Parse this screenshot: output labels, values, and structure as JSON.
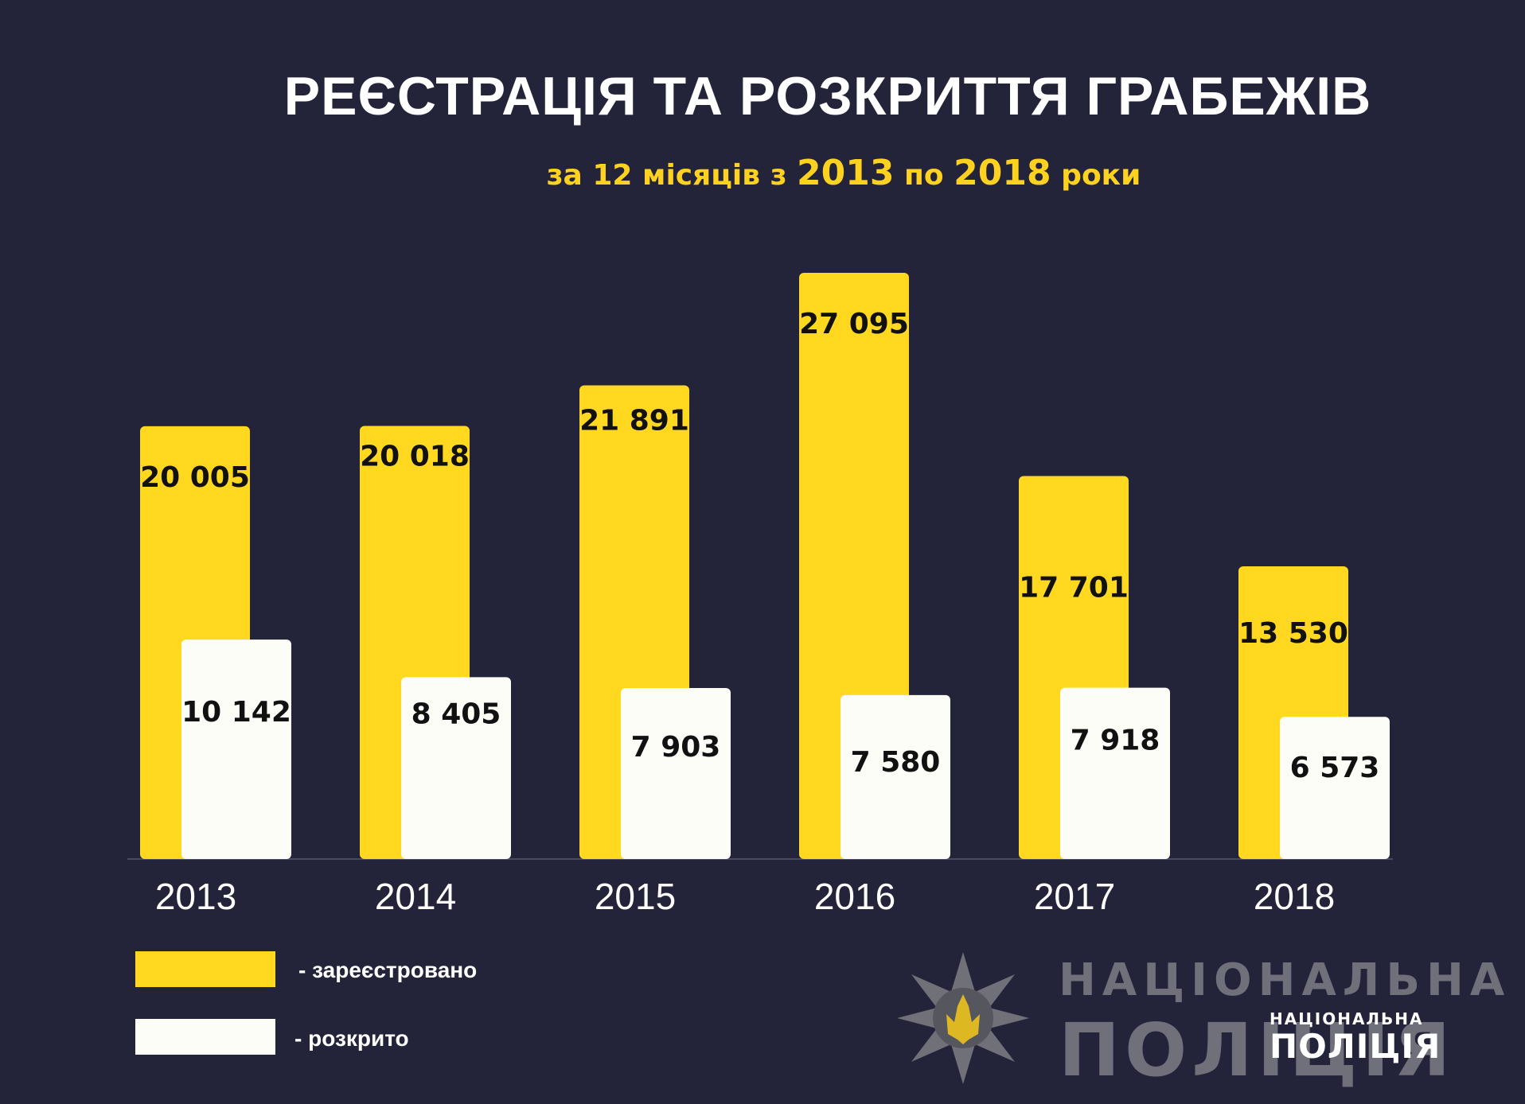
{
  "header": {
    "title": "РЕЄСТРАЦІЯ ТА РОЗКРИТТЯ ГРАБЕЖІВ",
    "subtitle_parts": [
      "за 12 місяців з ",
      "2013",
      " по ",
      "2018",
      " роки"
    ]
  },
  "legend": {
    "registered_label": "- зареєстровано",
    "solved_label": "- розкрито"
  },
  "colors": {
    "background": "#23233a",
    "registered": "#ffd81f",
    "solved": "#fdfdf8",
    "accent_text": "#ffd21f"
  },
  "watermark": {
    "line1": "НАЦІОНАЛЬНА",
    "line2": "ПОЛІЦІЯ",
    "small_line1": "НАЦІОНАЛЬНА",
    "small_line2": "ПОЛІЦІЯ",
    "emblem": "police-star-emblem-icon"
  },
  "chart_data": {
    "type": "bar",
    "categories": [
      "2013",
      "2014",
      "2015",
      "2016",
      "2017",
      "2018"
    ],
    "series": [
      {
        "name": "зареєстровано",
        "values": [
          20005,
          20018,
          21891,
          27095,
          17701,
          13530
        ],
        "labels": [
          "20 005",
          "20 018",
          "21 891",
          "27 095",
          "17 701",
          "13 530"
        ]
      },
      {
        "name": "розкрито",
        "values": [
          10142,
          8405,
          7903,
          7580,
          7918,
          6573
        ],
        "labels": [
          "10 142",
          "8 405",
          "7 903",
          "7 580",
          "7 918",
          "6 573"
        ]
      }
    ],
    "title": "РЕЄСТРАЦІЯ ТА РОЗКРИТТЯ ГРАБЕЖІВ",
    "xlabel": "",
    "ylabel": "",
    "ylim": [
      0,
      27095
    ],
    "grid": false,
    "legend_position": "bottom-left"
  }
}
